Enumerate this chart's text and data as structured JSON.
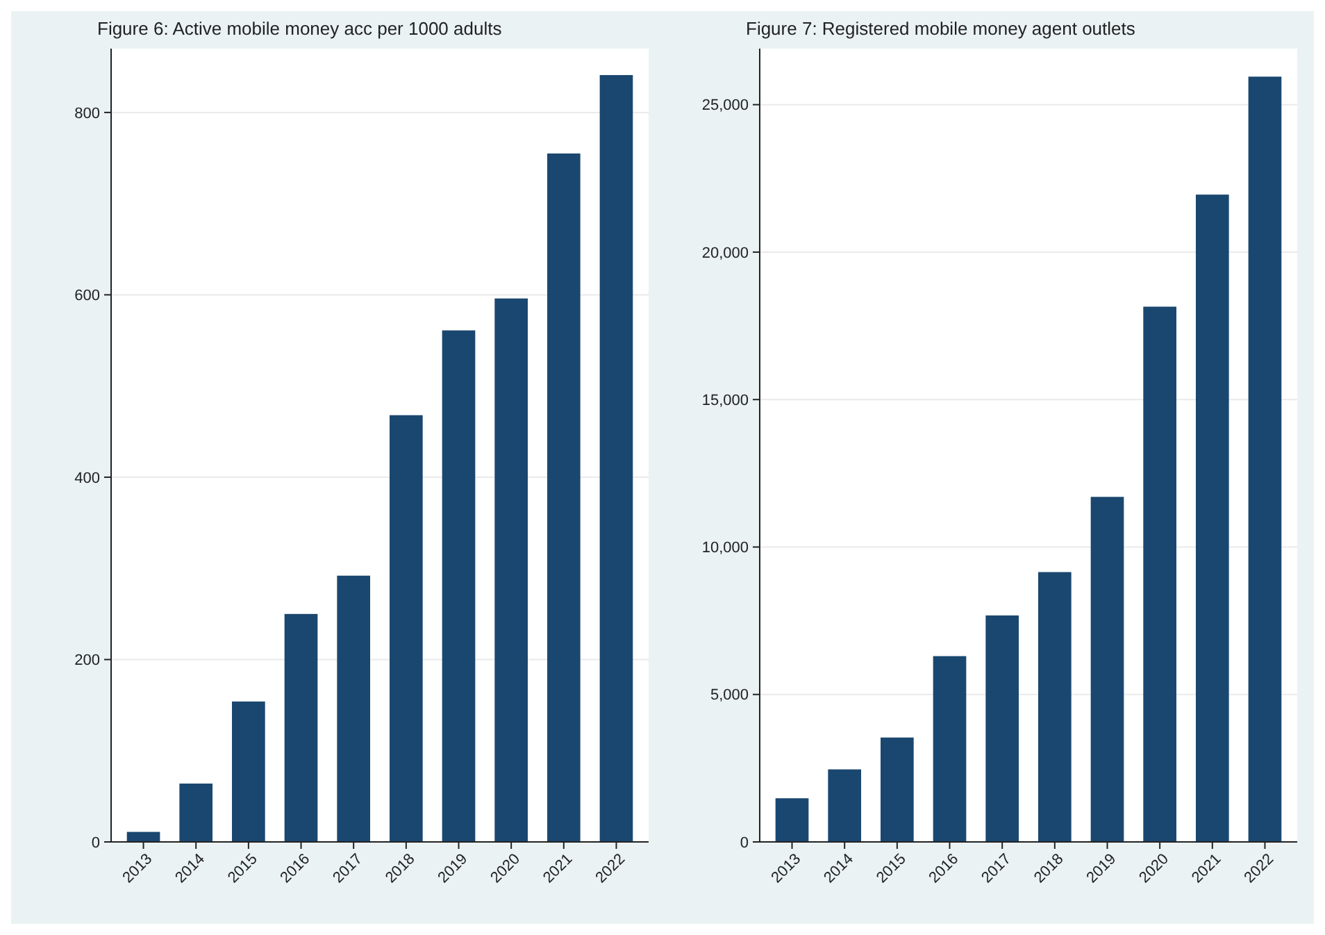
{
  "chart_data": [
    {
      "type": "bar",
      "title": "Figure 6: Active mobile money acc per 1000 adults",
      "categories": [
        "2013",
        "2014",
        "2015",
        "2016",
        "2017",
        "2018",
        "2019",
        "2020",
        "2021",
        "2022"
      ],
      "values": [
        11,
        64,
        154,
        250,
        292,
        468,
        561,
        596,
        755,
        841
      ],
      "color": "#1a476f",
      "ylim": [
        0,
        870
      ],
      "yticks": [
        0,
        200,
        400,
        600,
        800
      ],
      "grid": "y"
    },
    {
      "type": "bar",
      "title": "Figure 7: Registered mobile money agent outlets",
      "categories": [
        "2013",
        "2014",
        "2015",
        "2016",
        "2017",
        "2018",
        "2019",
        "2020",
        "2021",
        "2022"
      ],
      "values": [
        1480,
        2460,
        3540,
        6300,
        7680,
        9150,
        11700,
        18150,
        21950,
        25950
      ],
      "color": "#1a476f",
      "ylim": [
        0,
        26900
      ],
      "yticks": [
        {
          "value": 0,
          "label": "0"
        },
        {
          "value": 5000,
          "label": "5,000"
        },
        {
          "value": 10000,
          "label": "10,000"
        },
        {
          "value": 15000,
          "label": "15,000"
        },
        {
          "value": 20000,
          "label": "20,000"
        },
        {
          "value": 25000,
          "label": "25,000"
        }
      ],
      "grid": "y"
    }
  ]
}
